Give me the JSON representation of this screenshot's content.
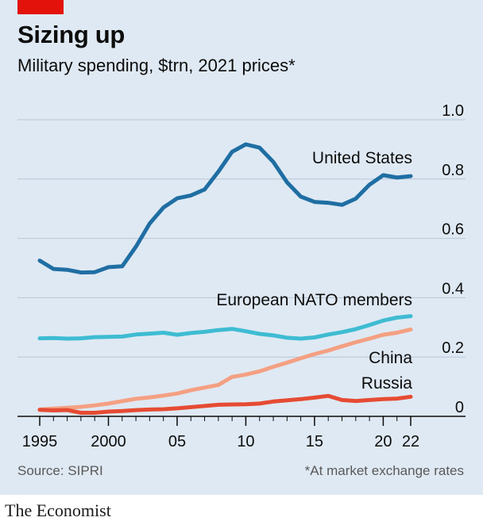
{
  "header": {
    "title": "Sizing up",
    "subtitle": "Military spending, $trn, 2021 prices*"
  },
  "footer": {
    "source": "Source: SIPRI",
    "note": "*At market exchange rates",
    "brand": "The Economist"
  },
  "colors": {
    "background": "#dfe9f3",
    "grid": "#b7c6d5",
    "united_states": "#1f6ea3",
    "european_nato": "#3ebcd2",
    "china": "#f4a082",
    "russia": "#e64b33",
    "brand_red": "#e3120b"
  },
  "chart_data": {
    "type": "line",
    "title": "Sizing up",
    "subtitle": "Military spending, $trn, 2021 prices*",
    "xlabel": "",
    "ylabel": "",
    "xlim": [
      1995,
      2022
    ],
    "ylim": [
      0,
      1.0
    ],
    "grid": true,
    "y_ticks": [
      {
        "value": 0,
        "label": "0"
      },
      {
        "value": 0.2,
        "label": "0.2"
      },
      {
        "value": 0.4,
        "label": "0.4"
      },
      {
        "value": 0.6,
        "label": "0.6"
      },
      {
        "value": 0.8,
        "label": "0.8"
      },
      {
        "value": 1.0,
        "label": "1.0"
      }
    ],
    "x_ticks": [
      {
        "value": 1995,
        "label": "1995"
      },
      {
        "value": 2000,
        "label": "2000"
      },
      {
        "value": 2005,
        "label": "05"
      },
      {
        "value": 2010,
        "label": "10"
      },
      {
        "value": 2015,
        "label": "15"
      },
      {
        "value": 2020,
        "label": "20"
      },
      {
        "value": 2022,
        "label": "22"
      }
    ],
    "x": [
      1995,
      1996,
      1997,
      1998,
      1999,
      2000,
      2001,
      2002,
      2003,
      2004,
      2005,
      2006,
      2007,
      2008,
      2009,
      2010,
      2011,
      2012,
      2013,
      2014,
      2015,
      2016,
      2017,
      2018,
      2019,
      2020,
      2021,
      2022
    ],
    "series": [
      {
        "name": "United States",
        "key": "united_states",
        "values": [
          0.525,
          0.497,
          0.494,
          0.485,
          0.486,
          0.503,
          0.506,
          0.572,
          0.65,
          0.704,
          0.735,
          0.745,
          0.765,
          0.825,
          0.892,
          0.917,
          0.906,
          0.858,
          0.789,
          0.741,
          0.723,
          0.72,
          0.713,
          0.734,
          0.781,
          0.813,
          0.805,
          0.81
        ]
      },
      {
        "name": "European NATO members",
        "key": "european_nato",
        "values": [
          0.263,
          0.264,
          0.262,
          0.263,
          0.267,
          0.268,
          0.269,
          0.276,
          0.279,
          0.282,
          0.275,
          0.281,
          0.285,
          0.291,
          0.295,
          0.287,
          0.278,
          0.273,
          0.265,
          0.262,
          0.266,
          0.276,
          0.284,
          0.294,
          0.308,
          0.323,
          0.333,
          0.338
        ]
      },
      {
        "name": "China",
        "key": "china",
        "values": [
          0.023,
          0.026,
          0.029,
          0.032,
          0.037,
          0.043,
          0.051,
          0.059,
          0.064,
          0.07,
          0.077,
          0.088,
          0.097,
          0.106,
          0.133,
          0.141,
          0.152,
          0.167,
          0.181,
          0.196,
          0.21,
          0.222,
          0.236,
          0.25,
          0.262,
          0.275,
          0.282,
          0.293
        ]
      },
      {
        "name": "Russia",
        "key": "russia",
        "values": [
          0.022,
          0.02,
          0.021,
          0.012,
          0.012,
          0.016,
          0.018,
          0.021,
          0.023,
          0.024,
          0.027,
          0.031,
          0.035,
          0.039,
          0.04,
          0.041,
          0.043,
          0.05,
          0.054,
          0.058,
          0.063,
          0.069,
          0.055,
          0.052,
          0.055,
          0.058,
          0.06,
          0.066
        ]
      }
    ]
  }
}
